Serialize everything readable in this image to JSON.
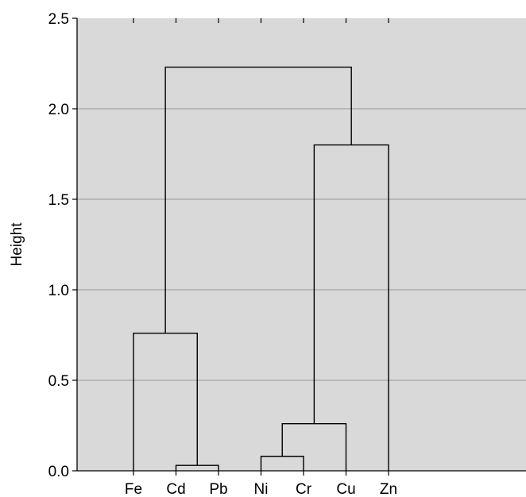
{
  "chart_data": {
    "type": "dendrogram",
    "title": "",
    "xlabel": "",
    "ylabel": "Height",
    "ylim": [
      0,
      2.5
    ],
    "yticks": [
      "0.0",
      "0.5",
      "1.0",
      "1.5",
      "2.0",
      "2.5"
    ],
    "grid": true,
    "leaves": [
      "Fe",
      "Cd",
      "Pb",
      "Ni",
      "Cr",
      "Cu",
      "Zn"
    ],
    "merges": [
      {
        "left": "Cd",
        "right": "Pb",
        "height": 0.03
      },
      {
        "left": "Ni",
        "right": "Cr",
        "height": 0.08
      },
      {
        "left": "Ni+Cr",
        "right": "Cu",
        "height": 0.26
      },
      {
        "left": "Fe",
        "right": "Cd+Pb",
        "height": 0.76
      },
      {
        "left": "Ni+Cr+Cu",
        "right": "Zn",
        "height": 1.8
      },
      {
        "left": "Fe+Cd+Pb",
        "right": "Ni+Cr+Cu+Zn",
        "height": 2.23
      }
    ]
  },
  "colors": {
    "plot_background": "#d9d9d9",
    "gridline": "#a6a6a6",
    "line": "#000000"
  }
}
